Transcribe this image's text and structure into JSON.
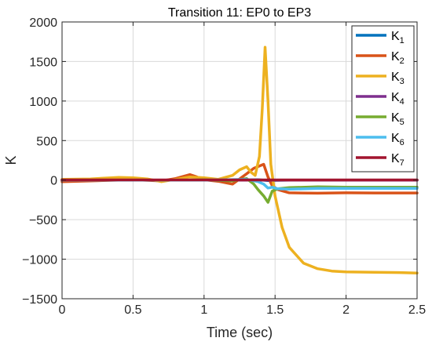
{
  "chart_data": {
    "type": "line",
    "title": "Transition 11: EP0 to EP3",
    "xlabel": "Time (sec)",
    "ylabel": "K",
    "xlim": [
      0,
      2.5
    ],
    "ylim": [
      -1500,
      2000
    ],
    "xticks": [
      0,
      0.5,
      1,
      1.5,
      2,
      2.5
    ],
    "xtick_labels": [
      "0",
      "0.5",
      "1",
      "1.5",
      "2",
      "2.5"
    ],
    "yticks": [
      -1500,
      -1000,
      -500,
      0,
      500,
      1000,
      1500,
      2000
    ],
    "ytick_labels": [
      "−1500",
      "−1000",
      "−500",
      "0",
      "500",
      "1000",
      "1500",
      "2000"
    ],
    "grid": true,
    "legend_position": "top-right",
    "series": [
      {
        "name": "K",
        "sub": "1",
        "color": "#0072BD",
        "x": [
          0,
          1.0,
          1.3,
          1.38,
          1.45,
          1.5,
          1.6,
          2.0,
          2.5
        ],
        "y": [
          0,
          0,
          2,
          5,
          -5,
          -3,
          0,
          0,
          0
        ]
      },
      {
        "name": "K",
        "sub": "2",
        "color": "#D95319",
        "x": [
          0,
          0.2,
          0.5,
          0.7,
          0.8,
          0.9,
          0.95,
          1.0,
          1.1,
          1.2,
          1.3,
          1.35,
          1.42,
          1.45,
          1.48,
          1.52,
          1.6,
          1.8,
          2.0,
          2.2,
          2.5
        ],
        "y": [
          -20,
          -10,
          5,
          -10,
          20,
          70,
          40,
          5,
          -15,
          -50,
          80,
          150,
          200,
          40,
          -70,
          -120,
          -160,
          -165,
          -160,
          -162,
          -162
        ]
      },
      {
        "name": "K",
        "sub": "3",
        "color": "#EDB120",
        "x": [
          0,
          0.2,
          0.4,
          0.5,
          0.6,
          0.7,
          0.8,
          0.9,
          1.0,
          1.1,
          1.2,
          1.25,
          1.3,
          1.33,
          1.36,
          1.39,
          1.41,
          1.43,
          1.45,
          1.47,
          1.5,
          1.55,
          1.6,
          1.7,
          1.8,
          1.9,
          2.0,
          2.2,
          2.4,
          2.5
        ],
        "y": [
          10,
          15,
          35,
          30,
          15,
          -20,
          10,
          40,
          30,
          10,
          60,
          130,
          170,
          100,
          60,
          300,
          900,
          1680,
          1000,
          200,
          -200,
          -600,
          -850,
          -1050,
          -1120,
          -1150,
          -1160,
          -1165,
          -1170,
          -1175
        ]
      },
      {
        "name": "K",
        "sub": "4",
        "color": "#7E2F8E",
        "x": [
          0,
          0.5,
          1.0,
          1.5,
          2.0,
          2.5
        ],
        "y": [
          0,
          0,
          0,
          0,
          0,
          0
        ]
      },
      {
        "name": "K",
        "sub": "5",
        "color": "#77AC30",
        "x": [
          0,
          0.5,
          0.9,
          1.0,
          1.2,
          1.3,
          1.35,
          1.38,
          1.42,
          1.45,
          1.48,
          1.52,
          1.6,
          1.8,
          2.0,
          2.5
        ],
        "y": [
          0,
          0,
          0,
          5,
          -10,
          20,
          -50,
          -120,
          -200,
          -280,
          -140,
          -110,
          -95,
          -85,
          -90,
          -90
        ]
      },
      {
        "name": "K",
        "sub": "6",
        "color": "#4DBEEE",
        "x": [
          0,
          0.5,
          1.0,
          1.3,
          1.38,
          1.42,
          1.45,
          1.48,
          1.52,
          1.6,
          1.8,
          2.0,
          2.5
        ],
        "y": [
          0,
          0,
          0,
          10,
          -20,
          -50,
          -100,
          -90,
          -110,
          -115,
          -105,
          -105,
          -105
        ]
      },
      {
        "name": "K",
        "sub": "7",
        "color": "#A2142F",
        "x": [
          0,
          0.5,
          1.0,
          1.5,
          2.0,
          2.5
        ],
        "y": [
          2,
          2,
          2,
          2,
          2,
          2
        ]
      }
    ]
  }
}
